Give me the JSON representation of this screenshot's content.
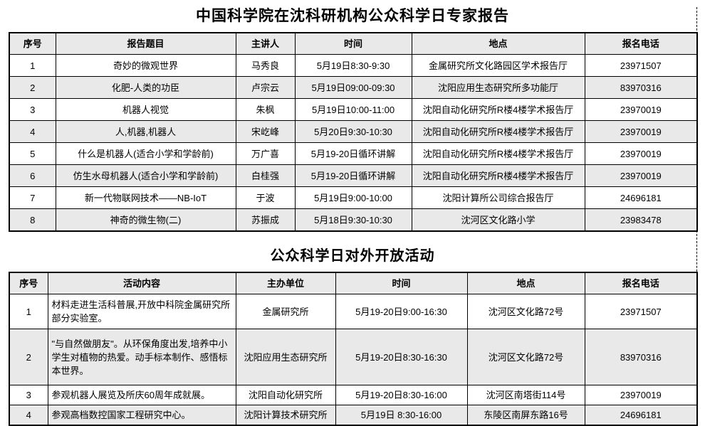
{
  "page": {
    "stripe_color": "#e9e9e9",
    "border_color": "#000000",
    "background": "#ffffff"
  },
  "report": {
    "title": "中国科学院在沈科研机构公众科学日专家报告",
    "headers": [
      "序号",
      "报告题目",
      "主讲人",
      "时间",
      "地点",
      "报名电话"
    ],
    "rows": [
      [
        "1",
        "奇妙的微观世界",
        "马秀良",
        "5月19日8:30-9:30",
        "金属研究所文化路园区学术报告厅",
        "23971507"
      ],
      [
        "2",
        "化肥-人类的功臣",
        "卢宗云",
        "5月19日09:00-09:30",
        "沈阳应用生态研究所多功能厅",
        "83970316"
      ],
      [
        "3",
        "机器人视觉",
        "朱枫",
        "5月19日10:00-11:00",
        "沈阳自动化研究所R楼4楼学术报告厅",
        "23970019"
      ],
      [
        "4",
        "人,机器,机器人",
        "宋屹峰",
        "5月20日9:30-10:30",
        "沈阳自动化研究所R楼4楼学术报告厅",
        "23970019"
      ],
      [
        "5",
        "什么是机器人(适合小学和学龄前)",
        "万广喜",
        "5月19-20日循环讲解",
        "沈阳自动化研究所R楼4楼学术报告厅",
        "23970019"
      ],
      [
        "6",
        "仿生水母机器人(适合小学和学龄前)",
        "白桂强",
        "5月19-20日循环讲解",
        "沈阳自动化研究所R楼4楼学术报告厅",
        "23970019"
      ],
      [
        "7",
        "新一代物联网技术——NB-IoT",
        "于波",
        "5月19日9:00-10:00",
        "沈阳计算所公司综合报告厅",
        "24696181"
      ],
      [
        "8",
        "神奇的微生物(二)",
        "苏振成",
        "5月18日9:30-10:30",
        "沈河区文化路小学",
        "23983478"
      ]
    ]
  },
  "activities": {
    "title": "公众科学日对外开放活动",
    "headers": [
      "序号",
      "活动内容",
      "主办单位",
      "时间",
      "地点",
      "报名电话"
    ],
    "rows": [
      [
        "1",
        "材料走进生活科普展,开放中科院金属研究所部分实验室。",
        "金属研究所",
        "5月19-20日9:00-16:30",
        "沈河区文化路72号",
        "23971507"
      ],
      [
        "2",
        "\"与自然做朋友\"。从环保角度出发,培养中小学生对植物的热爱。动手标本制作、感悟标本世界。",
        "沈阳应用生态研究所",
        "5月19-20日8:30-16:30",
        "沈河区文化路72号",
        "83970316"
      ],
      [
        "3",
        "参观机器人展览及所庆60周年成就展。",
        "沈阳自动化研究所",
        "5月19-20日8:30-16:00",
        "沈河区南塔街114号",
        "23970019"
      ],
      [
        "4",
        "参观高档数控国家工程研究中心。",
        "沈阳计算技术研究所",
        "5月19日 8:30-16:00",
        "东陵区南屏东路16号",
        "24696181"
      ]
    ]
  }
}
